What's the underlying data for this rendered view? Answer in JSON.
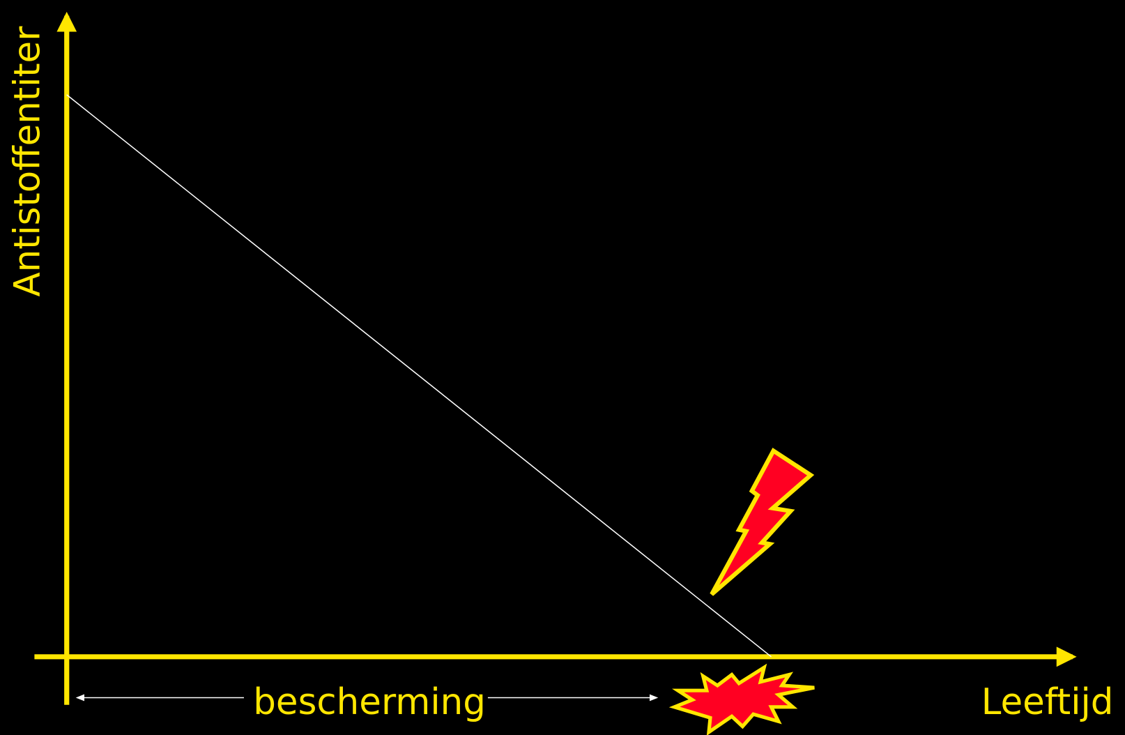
{
  "y_axis_label": "Antistoffentiter",
  "x_axis_label": "Leeftijd",
  "span_label": "bescherming"
}
